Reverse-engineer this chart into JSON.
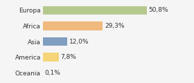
{
  "categories": [
    "Europa",
    "Africa",
    "Asia",
    "America",
    "Oceania"
  ],
  "values": [
    50.8,
    29.3,
    12.0,
    7.8,
    0.1
  ],
  "labels": [
    "50,8%",
    "29,3%",
    "12,0%",
    "7,8%",
    "0,1%"
  ],
  "bar_colors": [
    "#b5c98e",
    "#f0b97d",
    "#7f9ec0",
    "#f5d47a",
    "#c8c8c8"
  ],
  "background_color": "#f5f5f5",
  "xlim": [
    0,
    72
  ],
  "label_fontsize": 6.5,
  "category_fontsize": 6.5,
  "bar_height": 0.55
}
